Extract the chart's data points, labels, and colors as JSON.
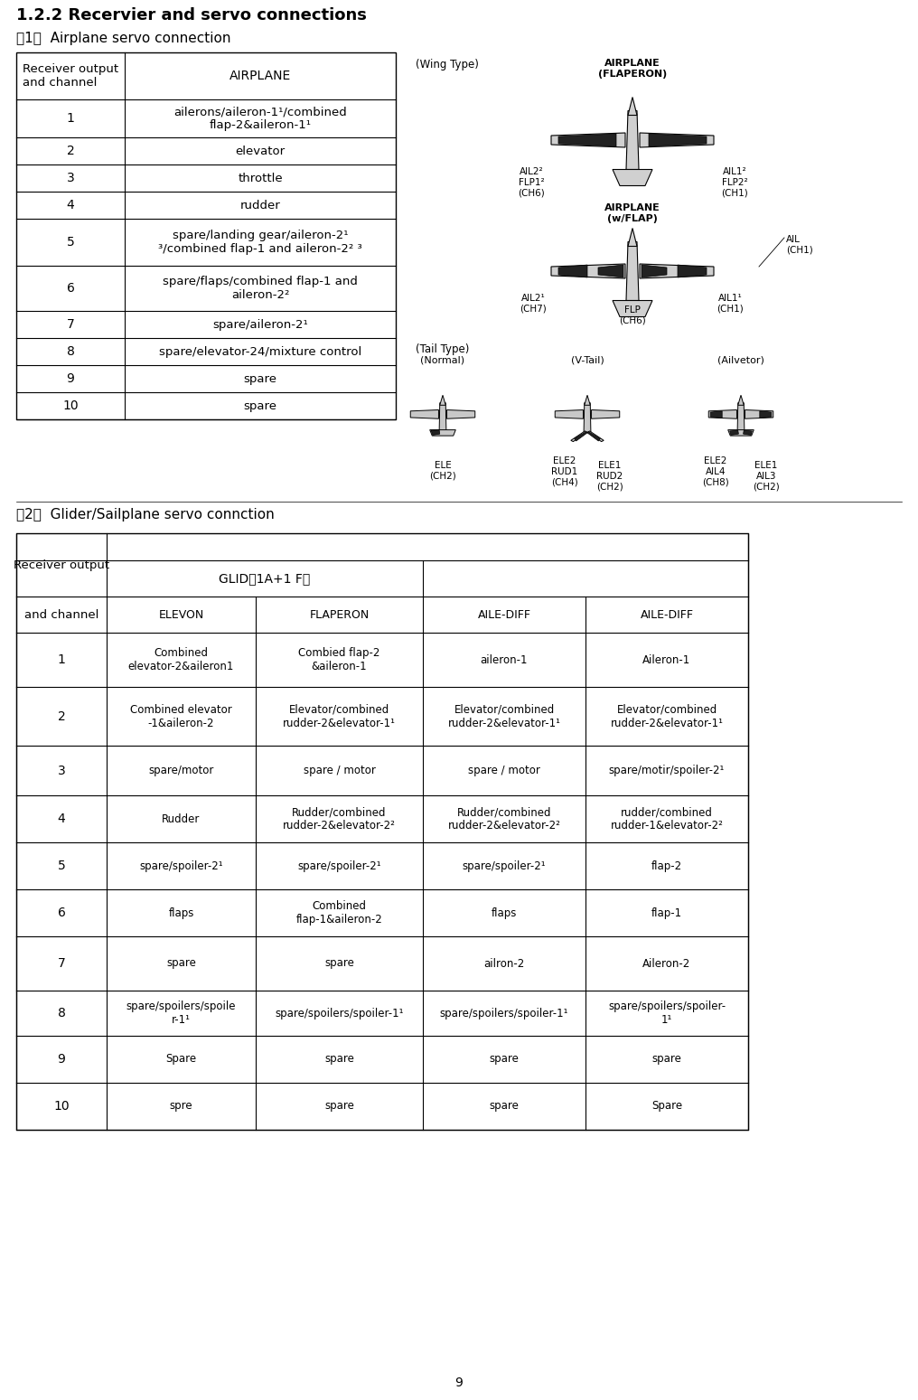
{
  "title": "1.2.2 Recervier and servo connections",
  "section1_title": "（1）  Airplane servo connection",
  "section2_title": "（2）  Glider/Sailplane servo connction",
  "page_number": "9",
  "airplane_table": {
    "col0_header": "Receiver output\nand channel",
    "col1_header": "AIRPLANE",
    "rows": [
      [
        "1",
        "ailerons/aileron-1¹/combined\nflap-2&aileron-1¹"
      ],
      [
        "2",
        "elevator"
      ],
      [
        "3",
        "throttle"
      ],
      [
        "4",
        "rudder"
      ],
      [
        "5",
        "spare/landing gear/aileron-2¹\n³/combined flap-1 and aileron-2² ³"
      ],
      [
        "6",
        "spare/flaps/combined flap-1 and\naileron-2²"
      ],
      [
        "7",
        "spare/aileron-2¹"
      ],
      [
        "8",
        "spare/elevator-24/mixture control"
      ],
      [
        "9",
        "spare"
      ],
      [
        "10",
        "spare"
      ]
    ]
  },
  "glider_table": {
    "col0_header_line1": "Receiver output",
    "col0_header_line2": "and channel",
    "col1_header": "GLID（1A+1 F）",
    "sub_headers": [
      "ELEVON",
      "FLAPERON",
      "AILE-DIFF",
      "AILE-DIFF"
    ],
    "rows": [
      [
        "1",
        "Combined\nelevator-2&aileron1",
        "Combied flap-2\n&aileron-1",
        "aileron-1",
        "Aileron-1"
      ],
      [
        "2",
        "Combined elevator\n-1&aileron-2",
        "Elevator/combined\nrudder-2&elevator-1¹",
        "Elevator/combined\nrudder-2&elevator-1¹",
        "Elevator/combined\nrudder-2&elevator-1¹"
      ],
      [
        "3",
        "spare/motor",
        "spare / motor",
        "spare / motor",
        "spare/motir/spoiler-2¹"
      ],
      [
        "4",
        "Rudder",
        "Rudder/combined\nrudder-2&elevator-2²",
        "Rudder/combined\nrudder-2&elevator-2²",
        "rudder/combined\nrudder-1&elevator-2²"
      ],
      [
        "5",
        "spare/spoiler-2¹",
        "spare/spoiler-2¹",
        "spare/spoiler-2¹",
        "flap-2"
      ],
      [
        "6",
        "flaps",
        "Combined\nflap-1&aileron-2",
        "flaps",
        "flap-1"
      ],
      [
        "7",
        "spare",
        "spare",
        "ailron-2",
        "Aileron-2"
      ],
      [
        "8",
        "spare/spoilers/spoile\nr-1¹",
        "spare/spoilers/spoiler-1¹",
        "spare/spoilers/spoiler-1¹",
        "spare/spoilers/spoiler-\n1¹"
      ],
      [
        "9",
        "Spare",
        "spare",
        "spare",
        "spare"
      ],
      [
        "10",
        "spre",
        "spare",
        "spare",
        "Spare"
      ]
    ]
  },
  "diagram": {
    "wing_type_label": "(Wing Type)",
    "flaperon_label": "AIRPLANE\n(FLAPERON)",
    "wflap_label": "AIRPLANE\n(w/FLAP)",
    "tail_type_label": "(Tail Type)",
    "normal_label": "(Normal)",
    "vtail_label": "(V-Tail)",
    "ailvetor_label": "(Ailvetor)",
    "flaperon_left_label": "AIL2²\nFLP1²\n(CH6)",
    "flaperon_right_label": "AIL1²\nFLP2²\n(CH1)",
    "wflap_right_label": "AIL\n(CH1)",
    "wflap_left_label": "AIL2¹\n(CH7)",
    "wflap_center_label": "FLP\n(CH6)",
    "wflap_rightw_label": "AIL1¹\n(CH1)",
    "normal_ele_label": "ELE\n(CH2)",
    "vtail_left_label": "ELE2\nRUD1\n(CH4)",
    "vtail_right_label": "ELE1\nRUD2\n(CH2)",
    "ailvetor_left_label": "ELE2\nAIL4\n(CH8)",
    "ailvetor_right_label": "ELE1\nAIL3\n(CH2)"
  }
}
